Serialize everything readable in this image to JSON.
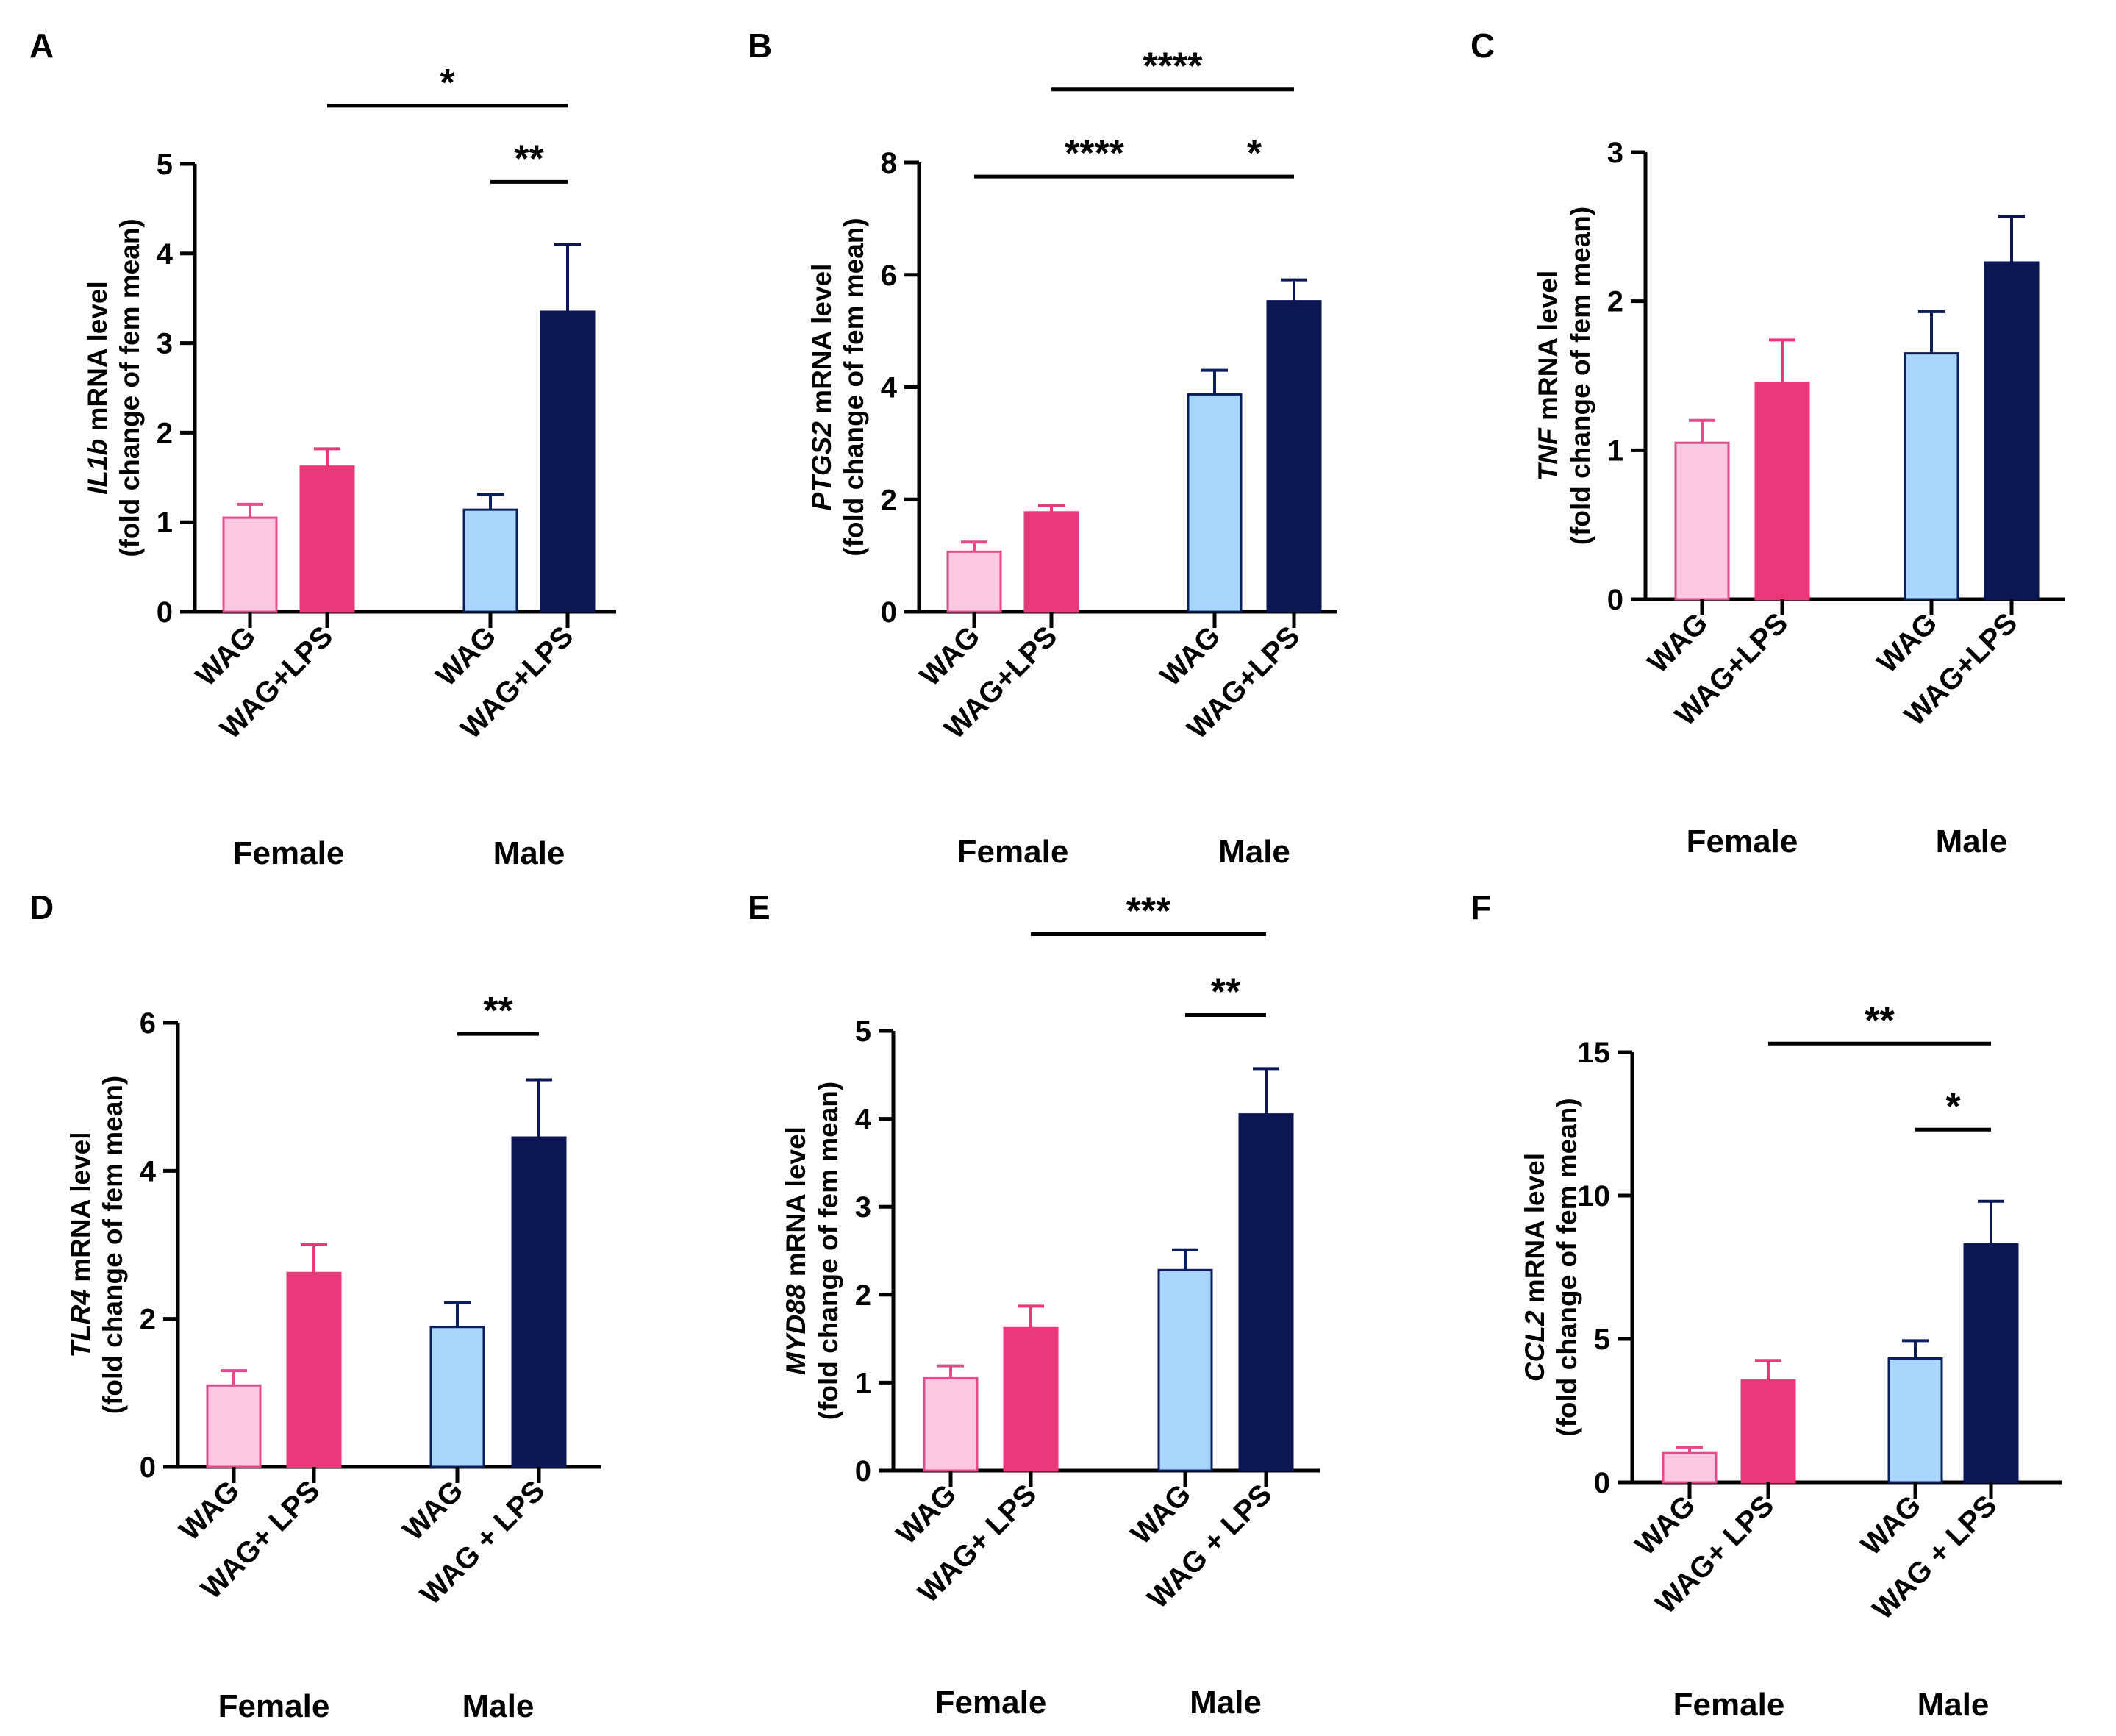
{
  "colors": {
    "female_wag": "#fbc8e2",
    "female_wag_edge": "#e24b8c",
    "female_lps": "#e8387a",
    "male_wag": "#a9d5fb",
    "male_wag_edge": "#0a1f5c",
    "male_lps": "#0a1752",
    "axis": "#000000"
  },
  "chart_data": [
    {
      "panel": "A",
      "type": "bar",
      "gene": "IL1b",
      "ylabel_italic": "IL1b",
      "ylabel_rest": " mRNA level",
      "ylabel_line2": "(fold change of fem mean)",
      "ylim": [
        0,
        5
      ],
      "yticks": [
        0,
        1,
        2,
        3,
        4,
        5
      ],
      "categories": [
        "WAG",
        "WAG+LPS",
        "WAG",
        "WAG+LPS"
      ],
      "groups": [
        "Female",
        "Male"
      ],
      "values": [
        1.05,
        1.62,
        1.14,
        3.35
      ],
      "errors": [
        0.15,
        0.2,
        0.17,
        0.75
      ],
      "significance": [
        {
          "from": 1,
          "to": 3,
          "label": "*",
          "y": 5.65
        },
        {
          "from": 2,
          "to": 3,
          "label": "**",
          "y": 4.8
        }
      ]
    },
    {
      "panel": "B",
      "type": "bar",
      "gene": "PTGS2",
      "ylabel_italic": "PTGS2",
      "ylabel_rest": " mRNA level",
      "ylabel_line2": "(fold change of fem mean)",
      "ylim": [
        0,
        8
      ],
      "yticks": [
        0,
        2,
        4,
        6,
        8
      ],
      "categories": [
        "WAG",
        "WAG+LPS",
        "WAG",
        "WAG+LPS"
      ],
      "groups": [
        "Female",
        "Male"
      ],
      "values": [
        1.07,
        1.77,
        3.87,
        5.53
      ],
      "errors": [
        0.17,
        0.12,
        0.43,
        0.38
      ],
      "significance": [
        {
          "from": 1,
          "to": 3,
          "label": "****",
          "y": 9.3
        },
        {
          "from": 0,
          "to": 2,
          "label": "****",
          "y": 7.75
        },
        {
          "from": 2,
          "to": 3,
          "label": "*",
          "y": 7.75
        }
      ]
    },
    {
      "panel": "C",
      "type": "bar",
      "gene": "TNF",
      "ylabel_italic": "TNF",
      "ylabel_rest": " mRNA level",
      "ylabel_line2": "(fold change of fem mean)",
      "ylim": [
        0,
        3
      ],
      "yticks": [
        0,
        1,
        2,
        3
      ],
      "categories": [
        "WAG",
        "WAG+LPS",
        "WAG",
        "WAG+LPS"
      ],
      "groups": [
        "Female",
        "Male"
      ],
      "values": [
        1.05,
        1.45,
        1.65,
        2.26
      ],
      "errors": [
        0.15,
        0.29,
        0.28,
        0.31
      ],
      "significance": []
    },
    {
      "panel": "D",
      "type": "bar",
      "gene": "TLR4",
      "ylabel_italic": "TLR4",
      "ylabel_rest": " mRNA level",
      "ylabel_line2": "(fold change of fem mean)",
      "ylim": [
        0,
        6
      ],
      "yticks": [
        0,
        2,
        4,
        6
      ],
      "categories": [
        "WAG",
        "WAG+ LPS",
        "WAG",
        "WAG + LPS"
      ],
      "groups": [
        "Female",
        "Male"
      ],
      "values": [
        1.1,
        2.62,
        1.89,
        4.45
      ],
      "errors": [
        0.2,
        0.38,
        0.33,
        0.78
      ],
      "significance": [
        {
          "from": 2,
          "to": 3,
          "label": "**",
          "y": 5.85
        }
      ]
    },
    {
      "panel": "E",
      "type": "bar",
      "gene": "MYD88",
      "ylabel_italic": "MYD88",
      "ylabel_rest": " mRNA level",
      "ylabel_line2": "(fold change of fem mean)",
      "ylim": [
        0,
        5
      ],
      "yticks": [
        0,
        1,
        2,
        3,
        4,
        5
      ],
      "categories": [
        "WAG",
        "WAG+ LPS",
        "WAG",
        "WAG + LPS"
      ],
      "groups": [
        "Female",
        "Male"
      ],
      "values": [
        1.05,
        1.62,
        2.28,
        4.05
      ],
      "errors": [
        0.14,
        0.25,
        0.23,
        0.52
      ],
      "significance": [
        {
          "from": 1,
          "to": 3,
          "label": "***",
          "y": 6.1
        },
        {
          "from": 2,
          "to": 3,
          "label": "**",
          "y": 5.18
        }
      ]
    },
    {
      "panel": "F",
      "type": "bar",
      "gene": "CCL2",
      "ylabel_italic": "CCL2",
      "ylabel_rest": " mRNA level",
      "ylabel_line2": "(fold change of fem mean)",
      "ylim": [
        0,
        15
      ],
      "yticks": [
        0,
        5,
        10,
        15
      ],
      "categories": [
        "WAG",
        "WAG+ LPS",
        "WAG",
        "WAG + LPS"
      ],
      "groups": [
        "Female",
        "Male"
      ],
      "values": [
        1.02,
        3.55,
        4.32,
        8.3
      ],
      "errors": [
        0.2,
        0.7,
        0.62,
        1.5
      ],
      "significance": [
        {
          "from": 1,
          "to": 3,
          "label": "**",
          "y": 15.3
        },
        {
          "from": 2,
          "to": 3,
          "label": "*",
          "y": 12.3
        }
      ]
    }
  ]
}
